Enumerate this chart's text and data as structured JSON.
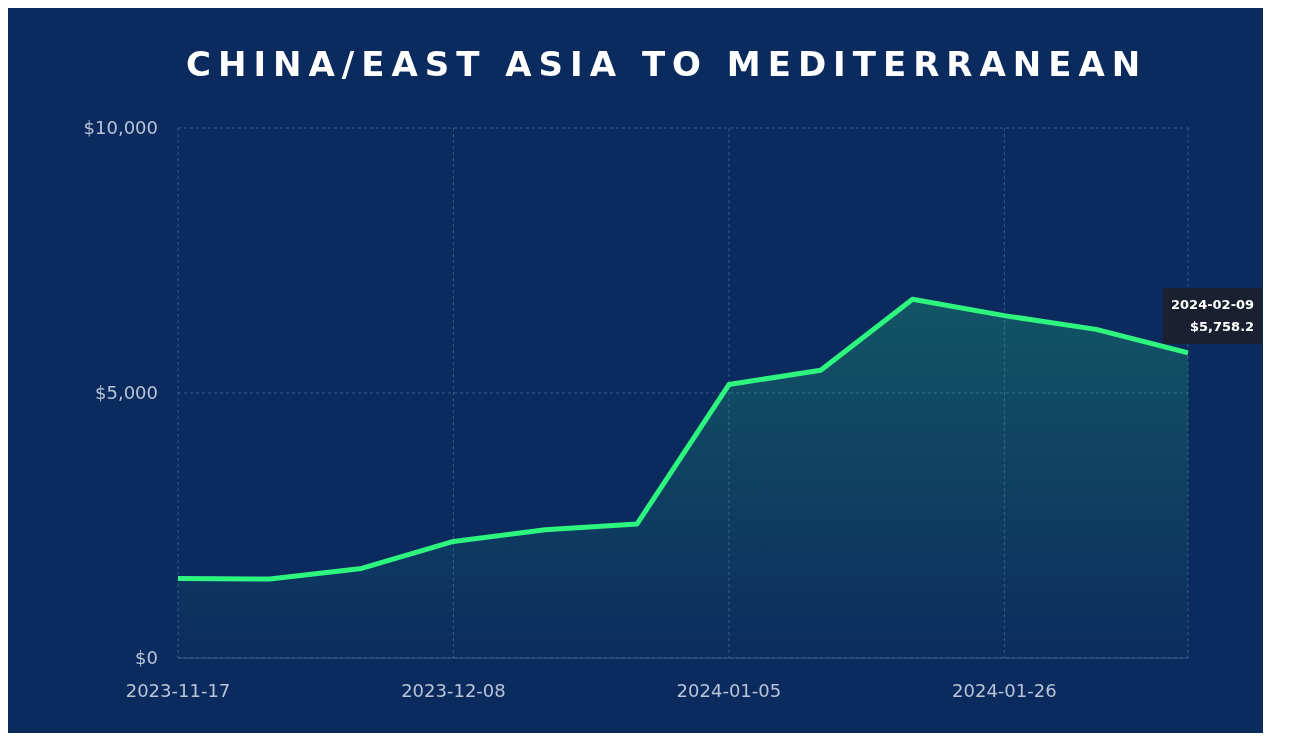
{
  "chart_data": {
    "type": "area",
    "title": "CHINA/EAST ASIA TO MEDITERRANEAN",
    "categories": [
      "2023-11-17",
      null,
      null,
      "2023-12-08",
      null,
      null,
      "2024-01-05",
      null,
      null,
      "2024-01-26",
      null,
      null
    ],
    "series": [
      {
        "color": "#2ef57e",
        "values": [
          1500,
          1490,
          1690,
          2200,
          2420,
          2530,
          5160,
          5430,
          6770,
          6460,
          6200,
          5758.2
        ]
      }
    ],
    "ylim": [
      0,
      10000
    ],
    "yticks": [
      {
        "value": 0,
        "label": "$0"
      },
      {
        "value": 5000,
        "label": "$5,000"
      },
      {
        "value": 10000,
        "label": "$10,000"
      }
    ],
    "grid": true,
    "annotations": [
      "2024-02-09\n$5,758.2"
    ]
  }
}
